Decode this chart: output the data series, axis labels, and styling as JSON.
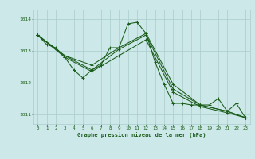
{
  "bg_color": "#cce8e8",
  "line_color": "#1a5c1a",
  "grid_color": "#aacccc",
  "title": "Graphe pression niveau de la mer (hPa)",
  "title_color": "#1a5c1a",
  "xlim": [
    -0.5,
    23.5
  ],
  "ylim": [
    1010.7,
    1014.3
  ],
  "yticks": [
    1011,
    1012,
    1013,
    1014
  ],
  "xticks": [
    0,
    1,
    2,
    3,
    4,
    5,
    6,
    7,
    8,
    9,
    10,
    11,
    12,
    13,
    14,
    15,
    16,
    17,
    18,
    19,
    20,
    21,
    22,
    23
  ],
  "series": [
    {
      "x": [
        0,
        1,
        2,
        3,
        4,
        5,
        6,
        7,
        8,
        9,
        10,
        11,
        12,
        13,
        14,
        15,
        16,
        17,
        18,
        19,
        20,
        21,
        22,
        23
      ],
      "y": [
        1013.5,
        1013.2,
        1013.1,
        1012.8,
        1012.4,
        1012.15,
        1012.4,
        1012.55,
        1013.1,
        1013.1,
        1013.85,
        1013.9,
        1013.55,
        1012.65,
        1011.95,
        1011.35,
        1011.35,
        1011.3,
        1011.3,
        1011.3,
        1011.5,
        1011.1,
        1011.35,
        1010.9
      ]
    },
    {
      "x": [
        0,
        3,
        6,
        9,
        12,
        15,
        18,
        21,
        23
      ],
      "y": [
        1013.5,
        1012.85,
        1012.55,
        1013.1,
        1013.55,
        1011.95,
        1011.3,
        1011.1,
        1010.9
      ]
    },
    {
      "x": [
        0,
        3,
        6,
        9,
        12,
        15,
        18,
        21,
        23
      ],
      "y": [
        1013.5,
        1012.85,
        1012.4,
        1013.05,
        1013.5,
        1011.8,
        1011.3,
        1011.1,
        1010.9
      ]
    },
    {
      "x": [
        0,
        3,
        6,
        9,
        12,
        15,
        18,
        21,
        23
      ],
      "y": [
        1013.5,
        1012.8,
        1012.35,
        1012.85,
        1013.35,
        1011.7,
        1011.25,
        1011.05,
        1010.9
      ]
    }
  ]
}
